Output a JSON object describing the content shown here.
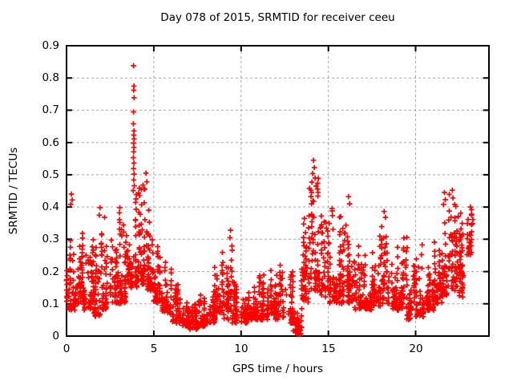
{
  "window": {
    "background": "#ffffff",
    "text_color": "#000000"
  },
  "chart_data": {
    "type": "scatter",
    "title": "Day 078 of 2015, SRMTID for receiver ceeu",
    "xlabel": "GPS time / hours",
    "ylabel": "SRMTID / TECUs",
    "xlim": [
      0,
      24.2
    ],
    "ylim": [
      0,
      0.9
    ],
    "xticks": [
      0,
      5,
      10,
      15,
      20
    ],
    "xtick_labels": [
      "0",
      "5",
      "10",
      "15",
      "20"
    ],
    "yticks": [
      0,
      0.1,
      0.2,
      0.3,
      0.4,
      0.5,
      0.6,
      0.7,
      0.8,
      0.9
    ],
    "ytick_labels": [
      "0",
      "0.1",
      "0.2",
      "0.3",
      "0.4",
      "0.5",
      "0.6",
      "0.7",
      "0.8",
      "0.9"
    ],
    "grid": true,
    "grid_color": "#a8a8a8",
    "grid_dash": "3,3",
    "frame_color": "#000000",
    "legend": "none",
    "marker": {
      "shape": "plus",
      "color": "#ff0000",
      "size": 7
    },
    "density_bins": {
      "format": [
        "t_start_h",
        "t_end_h",
        "y_min_tecu",
        "y_max_tecu",
        "n_points"
      ],
      "bins": [
        [
          0.0,
          0.5,
          0.08,
          0.33,
          55
        ],
        [
          0.5,
          1.0,
          0.1,
          0.32,
          55
        ],
        [
          1.0,
          1.5,
          0.08,
          0.28,
          50
        ],
        [
          1.5,
          2.0,
          0.06,
          0.3,
          50
        ],
        [
          2.0,
          2.5,
          0.08,
          0.33,
          50
        ],
        [
          2.5,
          3.0,
          0.1,
          0.34,
          50
        ],
        [
          3.0,
          3.5,
          0.1,
          0.4,
          55
        ],
        [
          3.5,
          4.0,
          0.15,
          0.47,
          60
        ],
        [
          4.0,
          4.5,
          0.16,
          0.47,
          60
        ],
        [
          4.5,
          5.0,
          0.14,
          0.44,
          55
        ],
        [
          5.0,
          5.5,
          0.1,
          0.32,
          50
        ],
        [
          5.5,
          6.0,
          0.07,
          0.24,
          48
        ],
        [
          6.0,
          6.5,
          0.04,
          0.16,
          46
        ],
        [
          6.5,
          7.0,
          0.03,
          0.12,
          46
        ],
        [
          7.0,
          7.5,
          0.02,
          0.11,
          46
        ],
        [
          7.5,
          8.0,
          0.03,
          0.13,
          46
        ],
        [
          8.0,
          8.5,
          0.04,
          0.17,
          46
        ],
        [
          8.5,
          9.0,
          0.07,
          0.26,
          46
        ],
        [
          9.0,
          9.5,
          0.05,
          0.3,
          46
        ],
        [
          9.5,
          10.0,
          0.04,
          0.18,
          45
        ],
        [
          10.0,
          10.5,
          0.04,
          0.16,
          45
        ],
        [
          10.5,
          11.0,
          0.05,
          0.17,
          45
        ],
        [
          11.0,
          11.5,
          0.05,
          0.2,
          45
        ],
        [
          11.5,
          12.0,
          0.06,
          0.23,
          45
        ],
        [
          12.0,
          12.5,
          0.05,
          0.22,
          45
        ],
        [
          12.5,
          13.0,
          0.04,
          0.2,
          45
        ],
        [
          13.0,
          13.5,
          0.005,
          0.24,
          38
        ],
        [
          13.5,
          14.0,
          0.1,
          0.44,
          55
        ],
        [
          14.0,
          14.5,
          0.14,
          0.5,
          55
        ],
        [
          14.5,
          15.0,
          0.12,
          0.44,
          50
        ],
        [
          15.0,
          15.5,
          0.1,
          0.4,
          50
        ],
        [
          15.5,
          16.0,
          0.1,
          0.42,
          50
        ],
        [
          16.0,
          16.5,
          0.1,
          0.42,
          50
        ],
        [
          16.5,
          17.0,
          0.08,
          0.28,
          46
        ],
        [
          17.0,
          17.5,
          0.08,
          0.26,
          46
        ],
        [
          17.5,
          18.0,
          0.09,
          0.33,
          46
        ],
        [
          18.0,
          18.5,
          0.1,
          0.38,
          46
        ],
        [
          18.5,
          19.0,
          0.08,
          0.3,
          46
        ],
        [
          19.0,
          19.5,
          0.08,
          0.32,
          46
        ],
        [
          19.5,
          20.0,
          0.05,
          0.25,
          46
        ],
        [
          20.0,
          20.5,
          0.06,
          0.29,
          46
        ],
        [
          20.5,
          21.0,
          0.08,
          0.25,
          46
        ],
        [
          21.0,
          21.5,
          0.1,
          0.3,
          46
        ],
        [
          21.5,
          22.0,
          0.12,
          0.44,
          50
        ],
        [
          22.0,
          22.5,
          0.14,
          0.44,
          50
        ],
        [
          22.5,
          23.0,
          0.12,
          0.4,
          46
        ],
        [
          23.0,
          23.3,
          0.25,
          0.4,
          20
        ]
      ]
    },
    "peak_points": [
      [
        3.84,
        0.838
      ],
      [
        3.86,
        0.775
      ],
      [
        3.85,
        0.762
      ],
      [
        3.87,
        0.739
      ],
      [
        3.84,
        0.695
      ],
      [
        3.83,
        0.658
      ],
      [
        3.86,
        0.636
      ],
      [
        3.85,
        0.623
      ],
      [
        3.87,
        0.611
      ],
      [
        3.84,
        0.598
      ],
      [
        3.86,
        0.585
      ],
      [
        3.85,
        0.571
      ],
      [
        3.83,
        0.553
      ],
      [
        3.86,
        0.536
      ],
      [
        3.84,
        0.519
      ],
      [
        3.87,
        0.502
      ],
      [
        3.85,
        0.484
      ],
      [
        3.88,
        0.466
      ],
      [
        3.82,
        0.451
      ],
      [
        4.55,
        0.505
      ],
      [
        4.6,
        0.478
      ],
      [
        4.38,
        0.468
      ],
      [
        4.45,
        0.455
      ],
      [
        14.15,
        0.545
      ],
      [
        14.2,
        0.522
      ],
      [
        14.1,
        0.504
      ],
      [
        14.24,
        0.49
      ],
      [
        14.06,
        0.477
      ],
      [
        14.3,
        0.465
      ],
      [
        13.92,
        0.458
      ],
      [
        14.0,
        0.452
      ],
      [
        22.1,
        0.452
      ],
      [
        21.65,
        0.445
      ],
      [
        22.14,
        0.428
      ],
      [
        21.7,
        0.423
      ],
      [
        21.6,
        0.408
      ],
      [
        22.3,
        0.402
      ],
      [
        0.28,
        0.44
      ],
      [
        0.32,
        0.422
      ],
      [
        0.24,
        0.408
      ],
      [
        1.92,
        0.398
      ],
      [
        1.88,
        0.375
      ],
      [
        2.18,
        0.368
      ],
      [
        9.4,
        0.328
      ],
      [
        9.37,
        0.305
      ],
      [
        16.15,
        0.432
      ],
      [
        16.22,
        0.41
      ],
      [
        18.2,
        0.386
      ],
      [
        18.27,
        0.368
      ],
      [
        23.15,
        0.4
      ],
      [
        23.2,
        0.378
      ],
      [
        13.18,
        0.012
      ],
      [
        13.22,
        0.034
      ],
      [
        13.25,
        0.056
      ]
    ]
  }
}
